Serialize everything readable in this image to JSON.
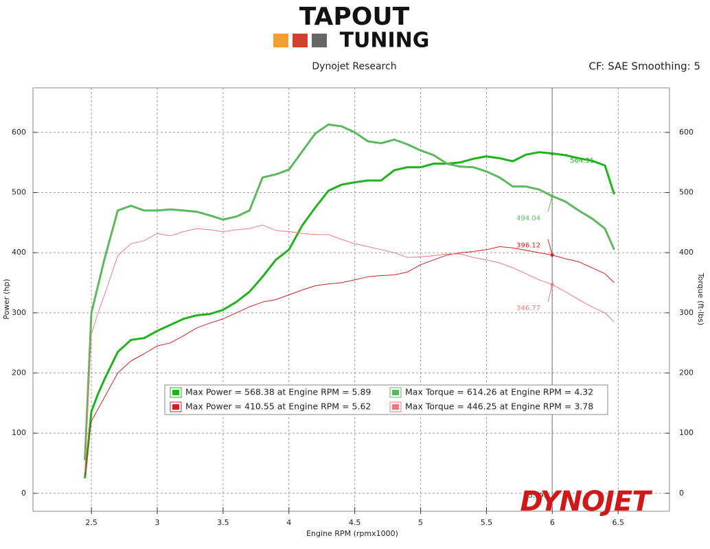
{
  "logo": {
    "line1": "TAPOUT",
    "line2": "TUNING"
  },
  "dynojet_logo": "DYNOJET",
  "chart_data": {
    "type": "line",
    "title": "Dynojet Research",
    "subtitle": "CF: SAE Smoothing: 5",
    "x_label": "Engine RPM (rpmx1000)",
    "y_label": "Power (hp)",
    "y2_label": "Torque (ft-lbs)",
    "x": [
      2.45,
      2.5,
      2.55,
      2.6,
      2.7,
      2.8,
      2.9,
      3.0,
      3.1,
      3.2,
      3.3,
      3.4,
      3.5,
      3.6,
      3.7,
      3.8,
      3.9,
      4.0,
      4.1,
      4.2,
      4.3,
      4.4,
      4.5,
      4.6,
      4.7,
      4.8,
      4.9,
      5.0,
      5.1,
      5.2,
      5.3,
      5.4,
      5.5,
      5.6,
      5.7,
      5.8,
      5.9,
      6.0,
      6.1,
      6.2,
      6.3,
      6.4,
      6.47
    ],
    "series": [
      {
        "name": "Max Power = 568.38 at Engine RPM = 5.89",
        "color": "#1fb21b",
        "values": [
          25,
          136,
          165,
          190,
          235,
          255,
          258,
          270,
          280,
          290,
          296,
          298,
          305,
          318,
          335,
          360,
          388,
          405,
          445,
          475,
          503,
          513,
          517,
          520,
          520,
          537,
          542,
          542,
          548,
          548,
          550,
          556,
          560,
          557,
          552,
          563,
          567,
          565,
          562,
          557,
          553,
          545,
          497
        ]
      },
      {
        "name": "Max Torque = 614.26 at Engine RPM = 4.32",
        "color": "#5cb85c",
        "axis": "y2",
        "values": [
          55,
          300,
          345,
          390,
          470,
          478,
          470,
          470,
          472,
          470,
          468,
          462,
          455,
          460,
          470,
          525,
          530,
          538,
          568,
          598,
          613,
          610,
          600,
          585,
          582,
          588,
          580,
          570,
          562,
          548,
          543,
          542,
          535,
          525,
          510,
          510,
          505,
          494,
          485,
          470,
          457,
          440,
          405
        ]
      },
      {
        "name": "Max Power = 410.55 at Engine RPM = 5.62",
        "color": "#d42020",
        "values": [
          30,
          120,
          140,
          160,
          200,
          220,
          232,
          245,
          250,
          262,
          275,
          283,
          290,
          300,
          310,
          318,
          322,
          330,
          338,
          345,
          348,
          350,
          355,
          360,
          362,
          363,
          368,
          380,
          388,
          396,
          400,
          402,
          405,
          410,
          408,
          404,
          400,
          396,
          390,
          385,
          375,
          365,
          350
        ]
      },
      {
        "name": "Max Torque = 446.25 at Engine RPM = 3.78",
        "color": "#f07a7a",
        "axis": "y2",
        "values": [
          35,
          265,
          300,
          330,
          395,
          415,
          420,
          432,
          428,
          435,
          440,
          438,
          435,
          438,
          440,
          446,
          437,
          435,
          432,
          430,
          430,
          422,
          415,
          410,
          405,
          400,
          392,
          393,
          395,
          398,
          398,
          392,
          388,
          383,
          375,
          365,
          355,
          347,
          335,
          322,
          310,
          300,
          285
        ]
      }
    ],
    "cursor_x": 5.999,
    "cursor_values": [
      564.31,
      494.04,
      396.12,
      346.77
    ],
    "xlim": [
      2.056,
      6.89
    ],
    "xticks": [
      2.5,
      3.0,
      3.5,
      4.0,
      4.5,
      5.0,
      5.5,
      6.0,
      6.5
    ],
    "ylim": [
      -29.8,
      674
    ],
    "yticks": [
      0,
      100,
      200,
      300,
      400,
      500,
      600
    ],
    "y2lim": [
      -29.8,
      674
    ],
    "y2ticks": [
      0,
      100,
      200,
      300,
      400,
      500,
      600
    ],
    "grid": true
  }
}
